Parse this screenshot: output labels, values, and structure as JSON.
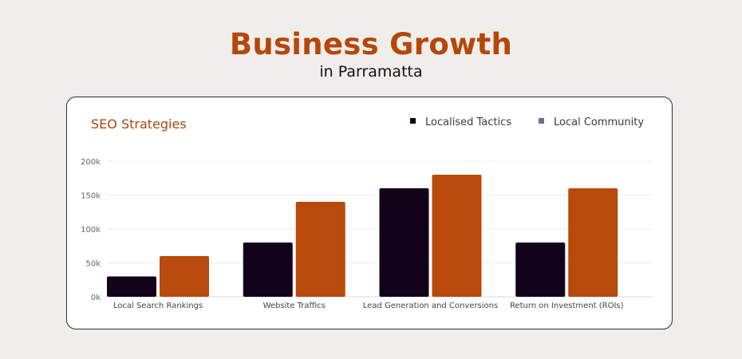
{
  "header": {
    "title": "Business Growth",
    "subtitle": "in Parramatta"
  },
  "colors": {
    "accent": "#b5470b",
    "series_dark": "#12031a",
    "series_orange": "#b84a0b",
    "legend_second_marker": "#6e6e8e"
  },
  "chart_data": {
    "type": "bar",
    "title": "SEO Strategies",
    "categories": [
      "Local Search Rankings",
      "Website Traffics",
      "Lead Generation and Conversions",
      "Return on Investment (ROIs)"
    ],
    "series": [
      {
        "name": "Localised Tactics",
        "values": [
          30000,
          80000,
          160000,
          80000
        ]
      },
      {
        "name": "Local Community",
        "values": [
          60000,
          140000,
          180000,
          160000
        ]
      }
    ],
    "y_ticks": [
      "0k",
      "50k",
      "100k",
      "150k",
      "200k"
    ],
    "ylim": [
      0,
      200000
    ],
    "grid": true,
    "legend_position": "top-right"
  }
}
